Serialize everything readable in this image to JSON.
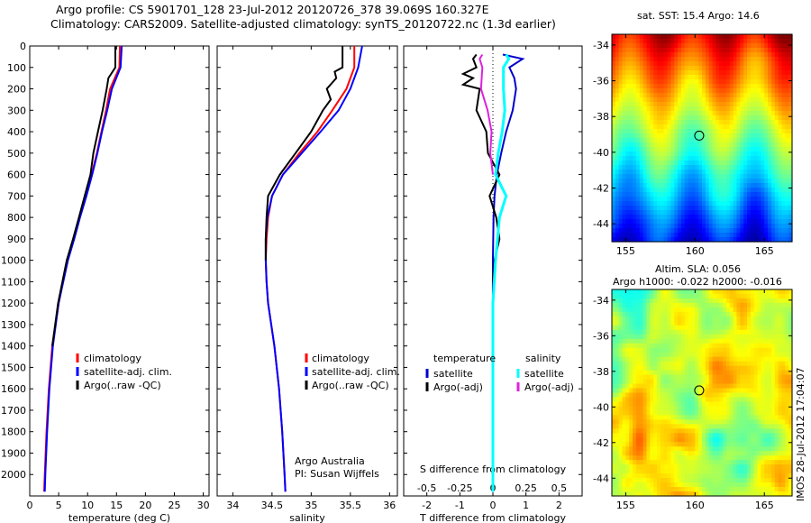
{
  "titles": {
    "line1": "Argo profile: CS 5901701_128 23-Jul-2012 20120726_378 39.069S 160.327E",
    "line2": "Climatology: CARS2009. Satellite-adjusted climatology: synTS_20120722.nc (1.3d earlier)"
  },
  "map_titles": {
    "sst": "sat. SST: 15.4 Argo: 14.6",
    "sla1": "Altim. SLA: 0.056",
    "sla2": "Argo h1000: -0.022 h2000: -0.016"
  },
  "credits": {
    "line1": "Argo Australia",
    "line2": "PI: Susan Wijffels",
    "imos": "IMOS 28-Jul-2012 17:04:07"
  },
  "colors": {
    "climatology": "#ff0000",
    "satellite": "#0000ff",
    "argo": "#000000",
    "t_sat": "#0000cc",
    "s_sat": "#00ffff",
    "s_argo": "#dd22dd"
  },
  "chart_data": [
    {
      "type": "line",
      "xlabel": "temperature (deg C)",
      "xlim": [
        0,
        31
      ],
      "xticks": [
        0,
        5,
        10,
        15,
        20,
        25,
        30
      ],
      "ylim": [
        2100,
        0
      ],
      "yticks": [
        0,
        100,
        200,
        300,
        400,
        500,
        600,
        700,
        800,
        900,
        1000,
        1100,
        1200,
        1300,
        1400,
        1500,
        1600,
        1700,
        1800,
        1900,
        2000
      ],
      "legend": [
        "climatology",
        "satellite-adj. clim.",
        "Argo(..raw -QC)"
      ],
      "series": [
        {
          "name": "climatology",
          "y": [
            0,
            100,
            200,
            300,
            400,
            500,
            600,
            700,
            800,
            900,
            1000,
            1200,
            1400,
            1600,
            1800,
            2000,
            2080
          ],
          "values": [
            15.6,
            15.5,
            13.9,
            13.2,
            12.4,
            11.6,
            10.7,
            9.7,
            8.6,
            7.6,
            6.5,
            5.0,
            3.9,
            3.3,
            2.9,
            2.6,
            2.5
          ]
        },
        {
          "name": "satellite-adj. clim.",
          "y": [
            0,
            100,
            200,
            300,
            400,
            500,
            600,
            700,
            800,
            900,
            1000,
            1200,
            1400,
            1600,
            1800,
            2000,
            2080
          ],
          "values": [
            15.9,
            15.7,
            14.2,
            13.4,
            12.5,
            11.7,
            10.8,
            9.8,
            8.7,
            7.7,
            6.6,
            5.0,
            4.0,
            3.4,
            3.0,
            2.7,
            2.6
          ]
        },
        {
          "name": "Argo(..raw -QC)",
          "y": [
            0,
            100,
            150,
            200,
            300,
            400,
            500,
            600,
            700,
            800,
            900,
            1000,
            1200,
            1400
          ],
          "values": [
            14.8,
            14.8,
            13.6,
            13.3,
            12.6,
            11.8,
            11.0,
            10.5,
            9.5,
            8.5,
            7.5,
            6.4,
            4.9,
            3.9
          ]
        }
      ]
    },
    {
      "type": "line",
      "xlabel": "salinity",
      "xlim": [
        33.8,
        36.1
      ],
      "xticks": [
        34,
        34.5,
        35,
        35.5,
        36
      ],
      "ylim": [
        2100,
        0
      ],
      "legend": [
        "climatology",
        "satellite-adj. clim.",
        "Argo(..raw -QC)"
      ],
      "series": [
        {
          "name": "climatology",
          "y": [
            0,
            100,
            200,
            300,
            400,
            500,
            600,
            700,
            800,
            900,
            1000,
            1100,
            1200,
            1400,
            1600,
            1800,
            2000,
            2080
          ],
          "values": [
            35.55,
            35.55,
            35.45,
            35.27,
            35.08,
            34.85,
            34.64,
            34.5,
            34.45,
            34.43,
            34.42,
            34.43,
            34.45,
            34.53,
            34.59,
            34.63,
            34.66,
            34.67
          ]
        },
        {
          "name": "satellite-adj. clim.",
          "y": [
            0,
            100,
            200,
            300,
            400,
            500,
            600,
            700,
            800,
            900,
            1000,
            1100,
            1200,
            1400,
            1600,
            1800,
            2000,
            2080
          ],
          "values": [
            35.65,
            35.6,
            35.5,
            35.35,
            35.12,
            34.88,
            34.64,
            34.5,
            34.44,
            34.42,
            34.42,
            34.43,
            34.45,
            34.53,
            34.59,
            34.63,
            34.66,
            34.67
          ]
        },
        {
          "name": "Argo(..raw -QC)",
          "y": [
            0,
            100,
            120,
            150,
            200,
            250,
            300,
            400,
            500,
            600,
            700,
            800,
            900,
            1000
          ],
          "values": [
            35.4,
            35.4,
            35.3,
            35.32,
            35.2,
            35.25,
            35.15,
            35.0,
            34.8,
            34.6,
            34.45,
            34.43,
            34.42,
            34.42
          ]
        }
      ]
    },
    {
      "type": "line",
      "xlabel": "T difference from climatology",
      "xlabel_top": "S difference from climatology",
      "xlim": [
        -2.7,
        2.7
      ],
      "xticks": [
        -2,
        -1,
        0,
        1,
        2
      ],
      "xticks_top": [
        -0.5,
        -0.25,
        0,
        0.25,
        0.5
      ],
      "ylim": [
        2100,
        0
      ],
      "legend_t_title": "temperature",
      "legend_s_title": "salinity",
      "legend_t": [
        "satellite",
        "Argo(-adj)"
      ],
      "legend_s": [
        "satellite",
        "Argo(-adj)"
      ],
      "series": [
        {
          "name": "temperature satellite",
          "y": [
            40,
            60,
            100,
            150,
            200,
            300,
            400,
            500,
            600,
            700,
            800,
            1000,
            1200,
            1500,
            2080
          ],
          "values": [
            0.3,
            0.9,
            0.5,
            0.65,
            0.7,
            0.6,
            0.4,
            0.25,
            0.12,
            0.05,
            0.02,
            0.0,
            0.0,
            0.0,
            0.0
          ]
        },
        {
          "name": "temperature Argo(-adj)",
          "y": [
            40,
            60,
            100,
            130,
            150,
            180,
            200,
            300,
            400,
            500,
            600,
            700,
            800,
            900,
            1000,
            1100
          ],
          "values": [
            -0.5,
            -0.6,
            -0.5,
            -0.9,
            -0.6,
            -0.9,
            -0.4,
            -0.5,
            -0.2,
            -0.15,
            0.2,
            -0.1,
            0.1,
            0.2,
            0.05,
            0.0
          ]
        },
        {
          "name": "salinity satellite",
          "y": [
            40,
            60,
            100,
            200,
            300,
            400,
            500,
            600,
            700,
            800,
            1000,
            1200,
            1500,
            2080
          ],
          "values": [
            0.1,
            0.12,
            0.08,
            0.08,
            0.09,
            0.07,
            0.04,
            0.02,
            0.1,
            0.05,
            0.02,
            0.0,
            0.0,
            0.0
          ]
        },
        {
          "name": "salinity Argo(-adj)",
          "y": [
            40,
            60,
            100,
            200,
            300,
            400,
            500,
            600
          ],
          "values": [
            -0.08,
            -0.1,
            -0.08,
            -0.09,
            -0.04,
            -0.01,
            -0.02,
            0.0
          ]
        }
      ]
    },
    {
      "type": "heatmap",
      "title": "sat. SST: 15.4 Argo: 14.6",
      "xlim": [
        154,
        167
      ],
      "ylim": [
        -45,
        -33.4
      ],
      "xticks": [
        155,
        160,
        165
      ],
      "yticks": [
        -34,
        -36,
        -38,
        -40,
        -42,
        -44
      ],
      "marker": {
        "lon": 160.3,
        "lat": -39.07
      }
    },
    {
      "type": "heatmap",
      "title": "Altim. SLA: 0.056",
      "xlim": [
        154,
        167
      ],
      "ylim": [
        -45,
        -33.4
      ],
      "xticks": [
        155,
        160,
        165
      ],
      "yticks": [
        -34,
        -36,
        -38,
        -40,
        -42,
        -44
      ],
      "marker": {
        "lon": 160.3,
        "lat": -39.07
      }
    }
  ]
}
